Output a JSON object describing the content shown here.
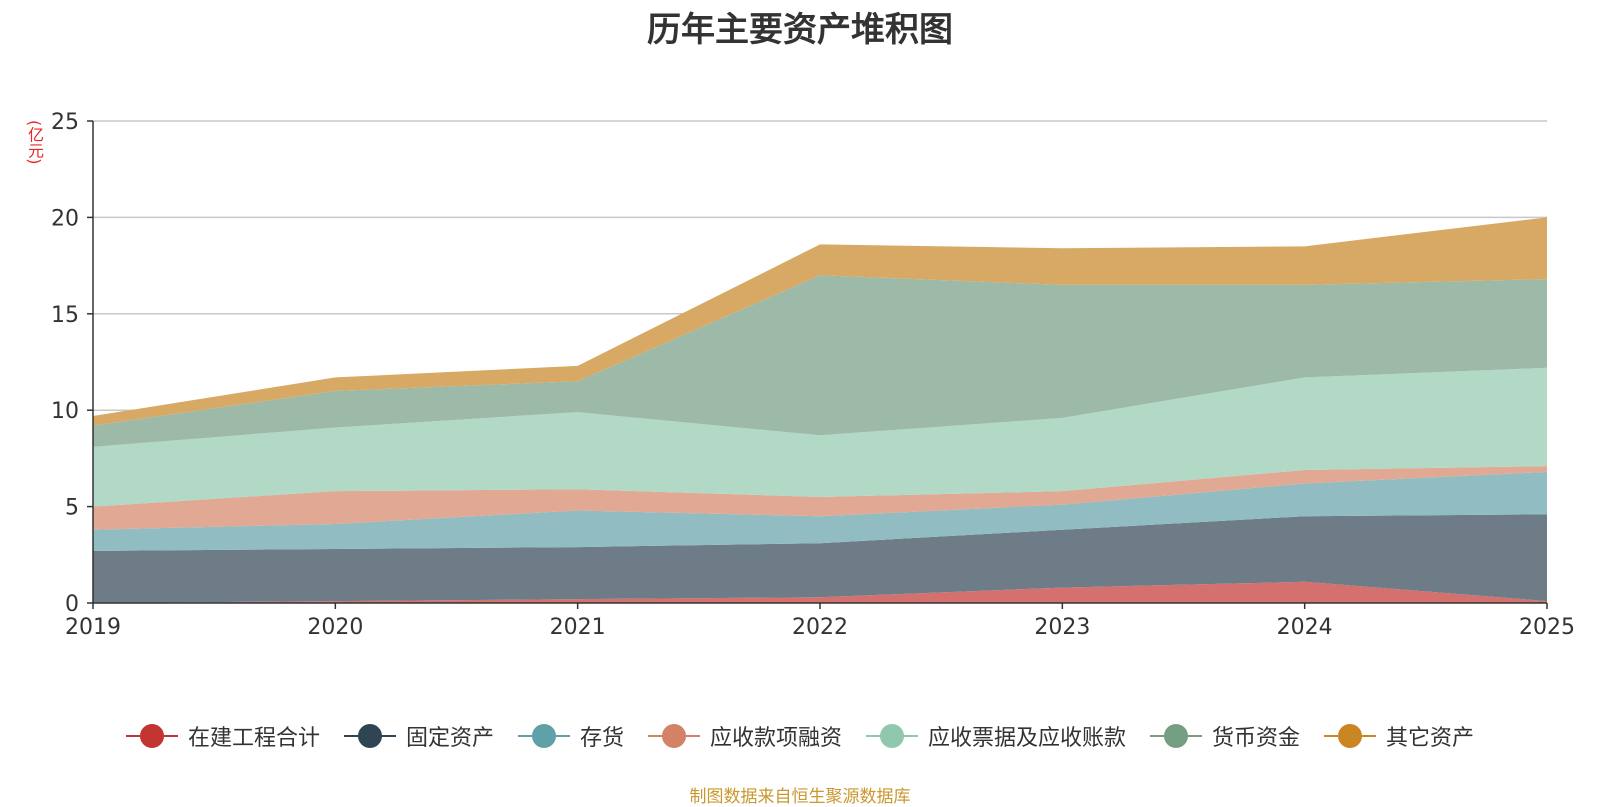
{
  "chart_data": {
    "type": "area",
    "stacked": true,
    "title": "历年主要资产堆积图",
    "unit_label": "(亿元)",
    "categories": [
      "2019",
      "2020",
      "2021",
      "2022",
      "2023",
      "2024",
      "2025"
    ],
    "ylim": [
      0,
      25
    ],
    "yticks": [
      0,
      5,
      10,
      15,
      20,
      25
    ],
    "ytick_labels": [
      "0",
      "5",
      "10",
      "15",
      "20",
      "25"
    ],
    "grid": true,
    "legend_position": "bottom",
    "series": [
      {
        "name": "在建工程合计",
        "color": "#c23531",
        "fill": "#d4716f",
        "values": [
          0.0,
          0.1,
          0.2,
          0.3,
          0.8,
          1.1,
          0.1
        ]
      },
      {
        "name": "固定资产",
        "color": "#2f4554",
        "fill": "#6d7c87",
        "values": [
          2.7,
          2.7,
          2.7,
          2.8,
          3.0,
          3.4,
          4.5
        ]
      },
      {
        "name": "存货",
        "color": "#61a0a8",
        "fill": "#90bcc2",
        "values": [
          1.1,
          1.3,
          1.9,
          1.4,
          1.3,
          1.7,
          2.2
        ]
      },
      {
        "name": "应收款项融资",
        "color": "#d48265",
        "fill": "#e1a893",
        "values": [
          1.2,
          1.7,
          1.1,
          1.0,
          0.7,
          0.7,
          0.3
        ]
      },
      {
        "name": "应收票据及应收账款",
        "color": "#91c7ae",
        "fill": "#b2d8c6",
        "values": [
          3.1,
          3.3,
          4.0,
          3.2,
          3.8,
          4.8,
          5.1
        ]
      },
      {
        "name": "货币资金",
        "color": "#749f83",
        "fill": "#9db9a7",
        "values": [
          1.1,
          1.9,
          1.6,
          8.3,
          6.9,
          4.8,
          4.6
        ]
      },
      {
        "name": "其它资产",
        "color": "#ca8622",
        "fill": "#d8a964",
        "values": [
          0.5,
          0.7,
          0.8,
          1.6,
          1.9,
          2.0,
          3.2
        ]
      }
    ]
  },
  "footer": {
    "source": "制图数据来自恒生聚源数据库"
  }
}
